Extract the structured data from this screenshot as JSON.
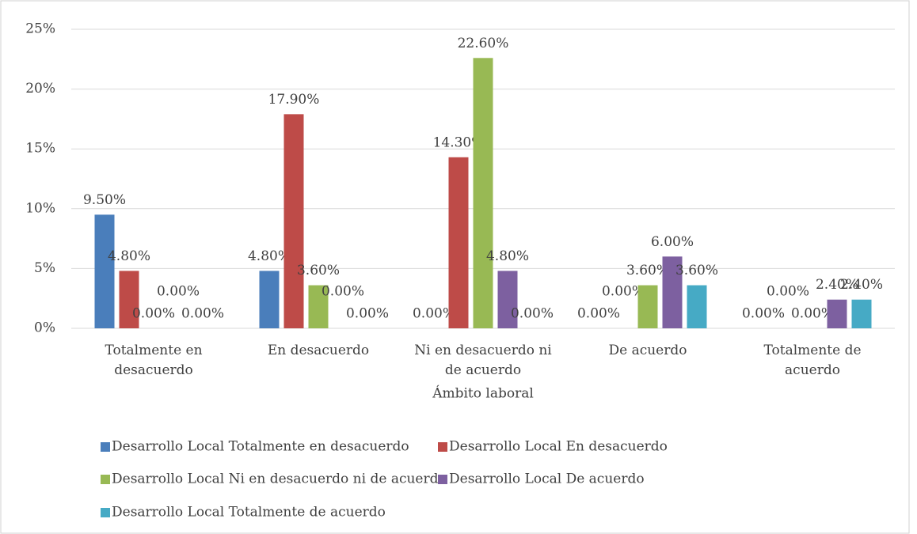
{
  "chart_data": {
    "type": "bar",
    "x_label": "Ámbito laboral",
    "categories": [
      "Totalmente en desacuerdo",
      "En desacuerdo",
      "Ni en desacuerdo ni de acuerdo",
      "De acuerdo",
      "Totalmente de acuerdo"
    ],
    "series": [
      {
        "name": "Desarrollo Local Totalmente en desacuerdo",
        "color": "#4a7ebb",
        "values": [
          9.5,
          4.8,
          0,
          0,
          0
        ],
        "value_labels": [
          "9.50%",
          "4.80%",
          "0.00%",
          "0.00%",
          "0.00%"
        ]
      },
      {
        "name": "Desarrollo Local En desacuerdo",
        "color": "#be4b48",
        "values": [
          4.8,
          17.9,
          14.3,
          0,
          0
        ],
        "value_labels": [
          "4.80%",
          "17.90%",
          "14.30%",
          "0.00%",
          "0.00%"
        ]
      },
      {
        "name": "Desarrollo Local Ni en desacuerdo ni de acuerdo",
        "color": "#98b954",
        "values": [
          0,
          3.6,
          22.6,
          3.6,
          0
        ],
        "value_labels": [
          "0.00%",
          "3.60%",
          "22.60%",
          "3.60%",
          "0.00%"
        ]
      },
      {
        "name": "Desarrollo Local De acuerdo",
        "color": "#7d60a0",
        "values": [
          0,
          0,
          4.8,
          6.0,
          2.4
        ],
        "value_labels": [
          "0.00%",
          "0.00%",
          "4.80%",
          "6.00%",
          "2.40%"
        ]
      },
      {
        "name": "Desarrollo Local Totalmente de acuerdo",
        "color": "#46aac5",
        "values": [
          0,
          0,
          0,
          3.6,
          2.4
        ],
        "value_labels": [
          "0.00%",
          "0.00%",
          "0.00%",
          "3.60%",
          "2.40%"
        ]
      }
    ],
    "ylim": [
      0,
      25
    ],
    "yticks": [
      {
        "value": 0,
        "label": "0%"
      },
      {
        "value": 5,
        "label": "5%"
      },
      {
        "value": 10,
        "label": "10%"
      },
      {
        "value": 15,
        "label": "15%"
      },
      {
        "value": 20,
        "label": "20%"
      },
      {
        "value": 25,
        "label": "25%"
      }
    ],
    "grid": true,
    "legend": "bottom"
  }
}
